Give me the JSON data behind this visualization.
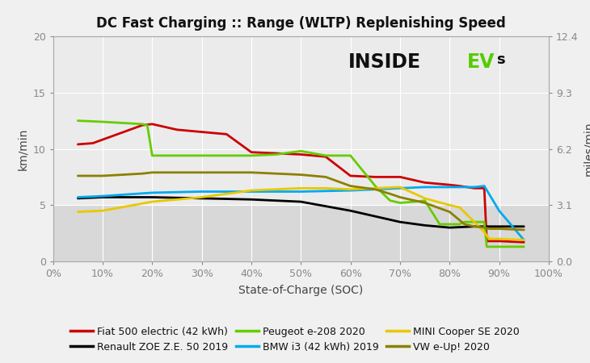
{
  "title": "DC Fast Charging :: Range (WLTP) Replenishing Speed",
  "xlabel": "State-of-Charge (SOC)",
  "ylabel_left": "km/min",
  "ylabel_right": "miles/min",
  "ylim": [
    0,
    20
  ],
  "ylim_right": [
    0,
    12.4
  ],
  "yticks_left": [
    0,
    5,
    10,
    15,
    20
  ],
  "yticks_right": [
    0.0,
    3.1,
    6.2,
    9.3,
    12.4
  ],
  "xticks": [
    0,
    10,
    20,
    30,
    40,
    50,
    60,
    70,
    80,
    90,
    100
  ],
  "figure_bg": "#f0f0f0",
  "plot_bg_upper": "#ebebeb",
  "plot_bg_lower": "#d8d8d8",
  "shade_threshold": 5,
  "series": {
    "fiat": {
      "label": "Fiat 500 electric (42 kWh)",
      "color": "#cc0000",
      "x": [
        5,
        8,
        18,
        20,
        25,
        30,
        35,
        40,
        45,
        50,
        55,
        60,
        65,
        70,
        75,
        80,
        82,
        85,
        87,
        87.5,
        88,
        90,
        95
      ],
      "y": [
        10.4,
        10.5,
        12.1,
        12.2,
        11.7,
        11.5,
        11.3,
        9.7,
        9.6,
        9.5,
        9.3,
        7.6,
        7.5,
        7.5,
        7.0,
        6.8,
        6.7,
        6.5,
        6.5,
        1.8,
        1.8,
        1.8,
        1.7
      ]
    },
    "zoe": {
      "label": "Renault ZOE Z.E. 50 2019",
      "color": "#000000",
      "x": [
        5,
        10,
        20,
        30,
        40,
        50,
        60,
        65,
        70,
        75,
        80,
        85,
        90,
        95
      ],
      "y": [
        5.6,
        5.7,
        5.7,
        5.6,
        5.5,
        5.3,
        4.5,
        4.0,
        3.5,
        3.2,
        3.0,
        3.1,
        3.1,
        3.1
      ]
    },
    "peugeot": {
      "label": "Peugeot e-208 2020",
      "color": "#66cc00",
      "x": [
        5,
        10,
        18,
        19,
        20,
        25,
        30,
        35,
        40,
        45,
        50,
        55,
        60,
        65,
        68,
        70,
        73,
        75,
        78,
        82,
        83,
        85,
        87,
        87.5,
        88,
        90,
        95
      ],
      "y": [
        12.5,
        12.4,
        12.2,
        12.1,
        9.4,
        9.4,
        9.4,
        9.4,
        9.4,
        9.5,
        9.8,
        9.4,
        9.4,
        6.7,
        5.4,
        5.2,
        5.3,
        5.4,
        3.3,
        3.3,
        3.5,
        3.5,
        3.5,
        1.3,
        1.3,
        1.3,
        1.3
      ]
    },
    "bmw": {
      "label": "BMW i3 (42 kWh) 2019",
      "color": "#00aaee",
      "x": [
        5,
        10,
        20,
        30,
        40,
        50,
        60,
        70,
        75,
        80,
        85,
        87,
        90,
        95
      ],
      "y": [
        5.7,
        5.8,
        6.1,
        6.2,
        6.2,
        6.2,
        6.3,
        6.5,
        6.6,
        6.6,
        6.6,
        6.7,
        4.5,
        1.9
      ]
    },
    "mini": {
      "label": "MINI Cooper SE 2020",
      "color": "#e8c800",
      "x": [
        5,
        10,
        20,
        30,
        40,
        50,
        55,
        60,
        65,
        70,
        75,
        80,
        82,
        85,
        87,
        88,
        90,
        95
      ],
      "y": [
        4.4,
        4.5,
        5.3,
        5.7,
        6.3,
        6.5,
        6.5,
        6.4,
        6.5,
        6.6,
        5.6,
        5.0,
        4.8,
        3.5,
        2.6,
        2.0,
        2.0,
        1.9
      ]
    },
    "vw": {
      "label": "VW e-Up! 2020",
      "color": "#8b8000",
      "x": [
        5,
        10,
        18,
        20,
        30,
        40,
        50,
        55,
        60,
        65,
        68,
        70,
        75,
        80,
        83,
        85,
        87,
        88,
        90,
        95
      ],
      "y": [
        7.6,
        7.6,
        7.8,
        7.9,
        7.9,
        7.9,
        7.7,
        7.5,
        6.7,
        6.4,
        6.0,
        5.7,
        5.2,
        4.4,
        3.3,
        3.1,
        3.0,
        2.9,
        2.9,
        2.8
      ]
    }
  },
  "legend_order": [
    "fiat",
    "zoe",
    "peugeot",
    "bmw",
    "mini",
    "vw"
  ],
  "watermark_color_main": "#111111",
  "watermark_color_ev": "#55cc00"
}
